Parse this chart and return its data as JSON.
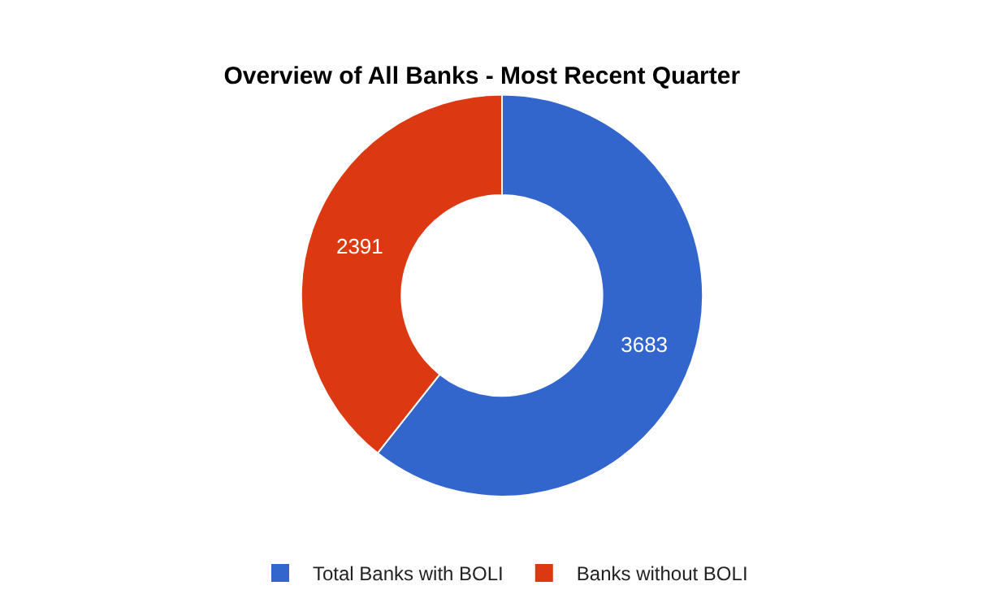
{
  "chart_data": {
    "type": "donut",
    "title": "Overview of All Banks - Most Recent Quarter",
    "categories": [
      "Total Banks with BOLI",
      "Banks without BOLI"
    ],
    "values": [
      3683,
      2391
    ],
    "colors": [
      "#3366cc",
      "#dc3912"
    ],
    "data_labels": true,
    "legend": "bottom"
  }
}
